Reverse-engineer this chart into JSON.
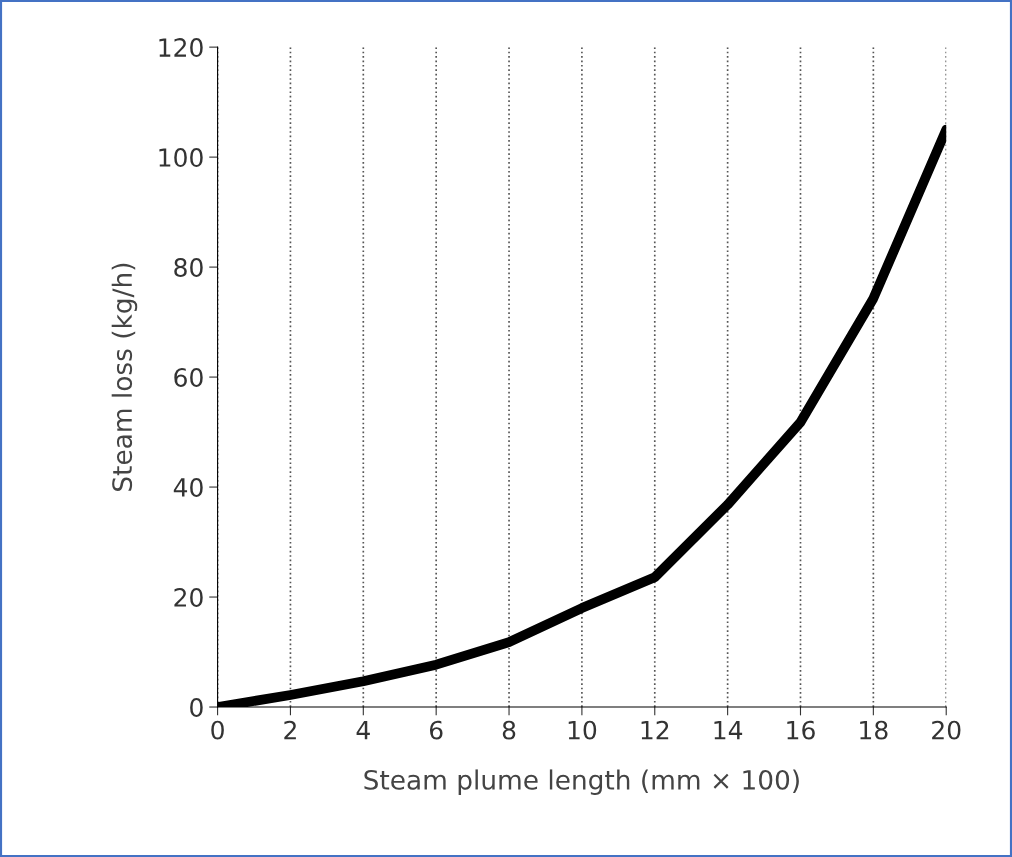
{
  "chart_data": {
    "type": "line",
    "xlabel": "Steam plume length (mm × 100)",
    "ylabel": "Steam loss (kg/h)",
    "x": [
      0,
      2,
      4,
      6,
      8,
      10,
      12,
      14,
      16,
      18,
      20
    ],
    "series": [
      {
        "color": "#000000",
        "values": [
          0,
          2.2,
          4.7,
          7.7,
          11.8,
          18,
          23.6,
          36.8,
          51.8,
          74.3,
          105
        ]
      }
    ],
    "xlim": [
      0,
      20
    ],
    "xticks": [
      0,
      2,
      4,
      6,
      8,
      10,
      12,
      14,
      16,
      18,
      20
    ],
    "ylim": [
      0,
      120
    ],
    "yticks": [
      0,
      20,
      40,
      60,
      80,
      100,
      120
    ],
    "grid": "x",
    "marker": "none",
    "line_style": "solid"
  }
}
